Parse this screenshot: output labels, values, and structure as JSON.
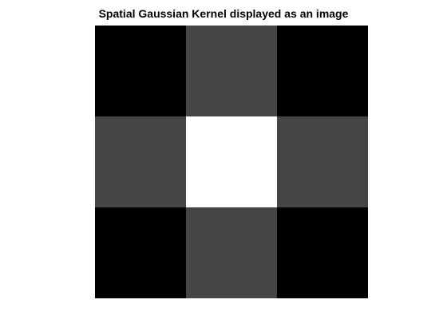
{
  "chart_data": {
    "type": "heatmap",
    "title": "Spatial Gaussian Kernel displayed as an image",
    "xlabel": "",
    "ylabel": "",
    "colormap": "gray",
    "axes_visible": false,
    "grid": false,
    "rows": 3,
    "cols": 3,
    "values": [
      [
        0.0,
        0.27,
        0.0
      ],
      [
        0.27,
        1.0,
        0.27
      ],
      [
        0.0,
        0.27,
        0.0
      ]
    ]
  }
}
